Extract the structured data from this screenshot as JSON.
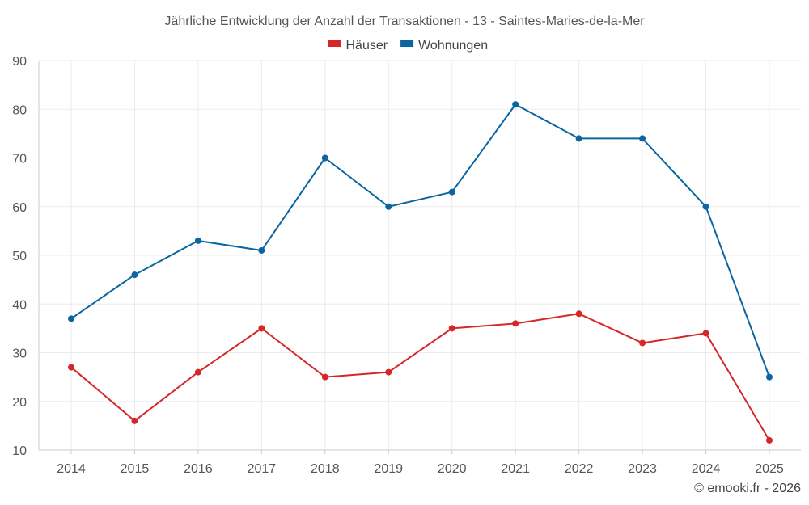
{
  "chart_data": {
    "type": "line",
    "title": "Jährliche Entwicklung der Anzahl der Transaktionen - 13 - Saintes-Maries-de-la-Mer",
    "categories": [
      "2014",
      "2015",
      "2016",
      "2017",
      "2018",
      "2019",
      "2020",
      "2021",
      "2022",
      "2023",
      "2024",
      "2025"
    ],
    "series": [
      {
        "name": "Häuser",
        "color": "#d62728",
        "values": [
          27,
          16,
          26,
          35,
          25,
          26,
          35,
          36,
          38,
          32,
          34,
          12
        ]
      },
      {
        "name": "Wohnungen",
        "color": "#0b65a0",
        "values": [
          37,
          46,
          53,
          51,
          70,
          60,
          63,
          81,
          74,
          74,
          60,
          25
        ]
      }
    ],
    "yticks": [
      "10",
      "20",
      "30",
      "40",
      "50",
      "60",
      "70",
      "80",
      "90"
    ],
    "ylim": [
      10,
      90
    ],
    "xlabel": "",
    "ylabel": "",
    "legend_position": "top-center",
    "grid": true
  },
  "credit": "© emooki.fr - 2026"
}
